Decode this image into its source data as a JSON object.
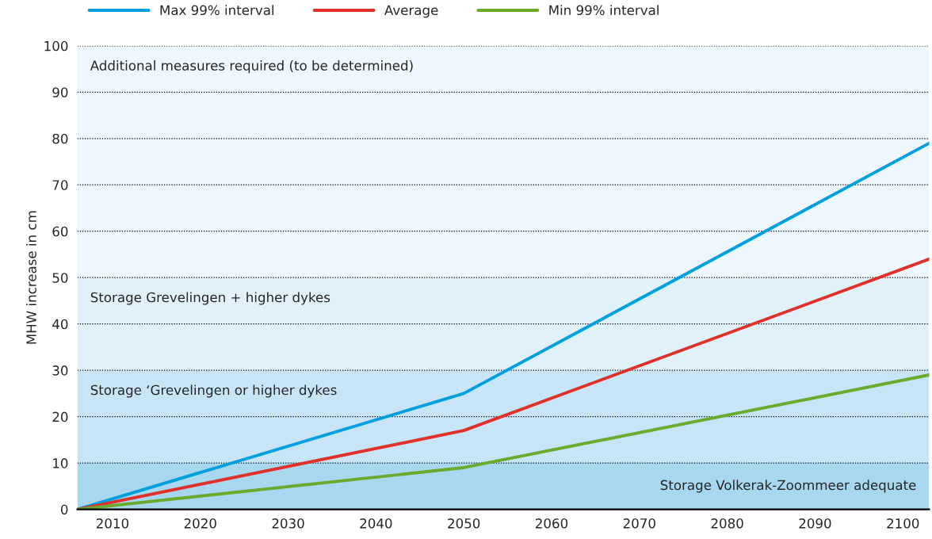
{
  "chart_data": {
    "type": "line",
    "ylabel": "MHW increase in cm",
    "x": [
      2006,
      2050,
      2103
    ],
    "series": [
      {
        "name": "Max 99% interval",
        "color": "#00a0e0",
        "values": [
          0,
          25,
          79
        ]
      },
      {
        "name": "Average",
        "color": "#e0302a",
        "values": [
          0,
          17,
          54
        ]
      },
      {
        "name": "Min 99% interval",
        "color": "#6aab2e",
        "values": [
          0,
          9,
          29
        ]
      }
    ],
    "xlim": [
      2006,
      2103
    ],
    "xticks": [
      2010,
      2020,
      2030,
      2040,
      2050,
      2060,
      2070,
      2080,
      2090,
      2100
    ],
    "ylim": [
      0,
      100
    ],
    "yticks": [
      0,
      10,
      20,
      30,
      40,
      50,
      60,
      70,
      80,
      90,
      100
    ],
    "bands": [
      {
        "axis": "y",
        "from": 0,
        "to": 10,
        "label": "Storage Volkerak-Zoommeer adequate",
        "color": "#a8d8f0"
      },
      {
        "axis": "y",
        "from": 10,
        "to": 30,
        "label": "Storage ‘Grevelingen or higher dykes",
        "color": "#c7e5f6"
      },
      {
        "axis": "y",
        "from": 30,
        "to": 50,
        "label": "Storage Grevelingen + higher dykes",
        "color": "#e1f1fa"
      },
      {
        "axis": "y",
        "from": 50,
        "to": 100,
        "label": "Additional measures required (to be determined)",
        "color": "#eef7fd"
      }
    ],
    "grid": "y",
    "legend": "top",
    "line_style": "solid",
    "marker": "none"
  }
}
